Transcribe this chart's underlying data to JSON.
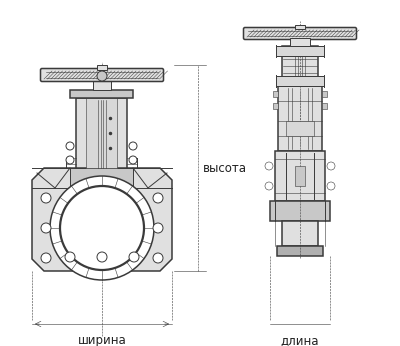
{
  "bg_color": "#ffffff",
  "lc": "#3a3a3a",
  "lc2": "#555555",
  "gray1": "#c8c8c8",
  "gray2": "#e0e0e0",
  "gray3": "#b0b0b0",
  "gray4": "#d8d8d8",
  "labels": {
    "height": "высота",
    "width": "ширина",
    "length": "длина"
  },
  "font_size": 8.5,
  "dpi": 100,
  "fig_w": 4.0,
  "fig_h": 3.46
}
